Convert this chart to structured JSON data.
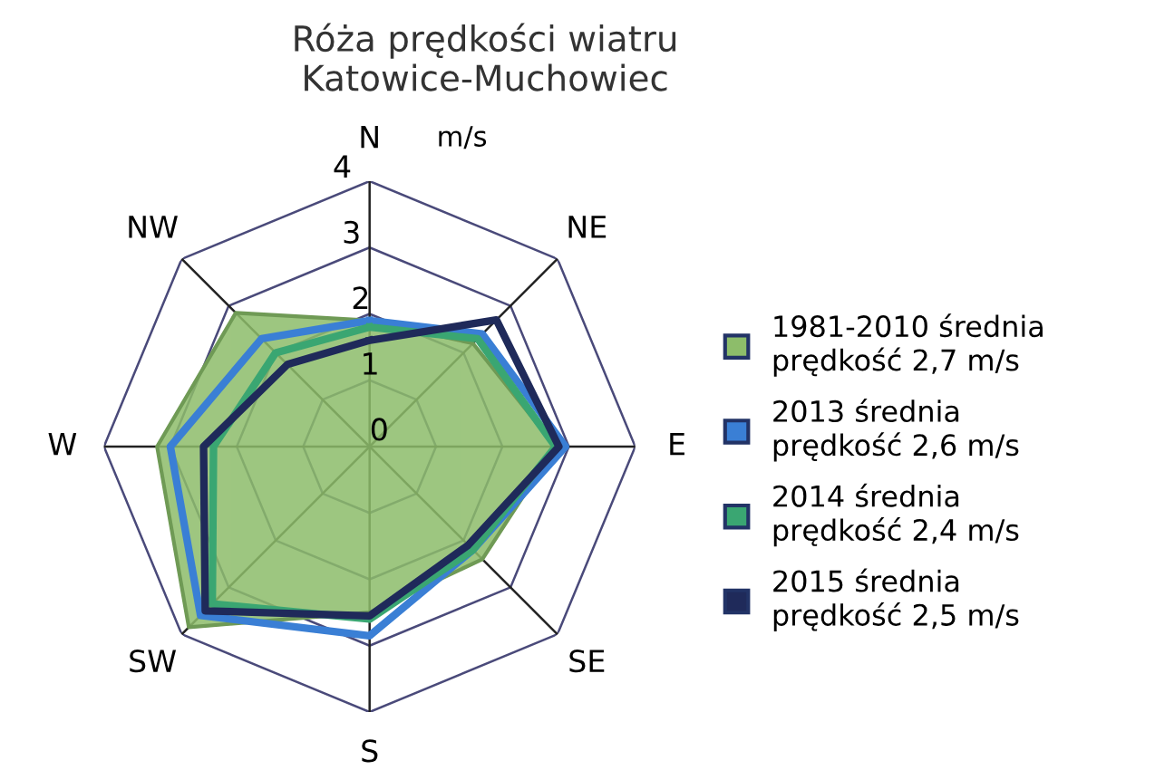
{
  "chart_data": {
    "type": "radar",
    "title": "Róża prędkości wiatru\nKatowice-Muchowiec",
    "ylabel": "m/s",
    "categories": [
      "N",
      "NE",
      "E",
      "SE",
      "S",
      "SW",
      "W",
      "NW"
    ],
    "series": [
      {
        "name": "1981-2010 średnia\nprędkość 2,7 m/s",
        "color": "#8dbd6a",
        "type": "area",
        "values": [
          1.9,
          2.2,
          2.8,
          2.4,
          2.5,
          3.85,
          3.2,
          2.85
        ]
      },
      {
        "name": "2013 średnia\nprędkość 2,6 m/s",
        "color": "#3a7fd5",
        "values": [
          1.9,
          2.4,
          2.95,
          2.2,
          2.85,
          3.6,
          3.0,
          2.3
        ]
      },
      {
        "name": "2014 średnia\nprędkość 2,4 m/s",
        "color": "#3aa672",
        "values": [
          1.8,
          2.3,
          2.8,
          2.2,
          2.6,
          3.35,
          2.35,
          2.0
        ]
      },
      {
        "name": "2015 średnia\nprędkość 2,5 m/s",
        "color": "#1f2a5a",
        "values": [
          1.6,
          2.7,
          2.85,
          2.1,
          2.55,
          3.5,
          2.5,
          1.75
        ]
      }
    ],
    "ylim": [
      0,
      4
    ],
    "yticks": [
      0,
      1,
      2,
      3,
      4
    ],
    "grid": true,
    "legend": "right",
    "marker": "none",
    "line_style": "solid"
  }
}
